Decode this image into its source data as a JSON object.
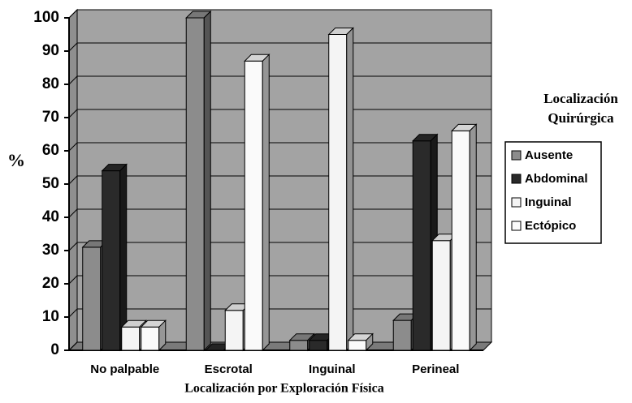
{
  "chart_data": {
    "type": "bar3d",
    "categories": [
      "No palpable",
      "Escrotal",
      "Inguinal",
      "Perineal"
    ],
    "series": [
      {
        "name": "Ausente",
        "color": "#8c8c8c",
        "values": [
          31,
          100,
          3,
          9
        ]
      },
      {
        "name": "Abdominal",
        "color": "#2a2a2a",
        "values": [
          54,
          0,
          3,
          63
        ]
      },
      {
        "name": "Inguinal",
        "color": "#f4f4f4",
        "values": [
          7,
          12,
          95,
          33
        ]
      },
      {
        "name": "Ectópico",
        "color": "#fafafa",
        "values": [
          7,
          87,
          3,
          66
        ]
      }
    ],
    "ylabel": "%",
    "xlabel": "Localización por Exploración Física",
    "legend_title": "Localización Quirúrgica",
    "ylim": [
      0,
      100
    ],
    "yticks": [
      0,
      10,
      20,
      30,
      40,
      50,
      60,
      70,
      80,
      90,
      100
    ],
    "grid": true,
    "legend": "right"
  }
}
